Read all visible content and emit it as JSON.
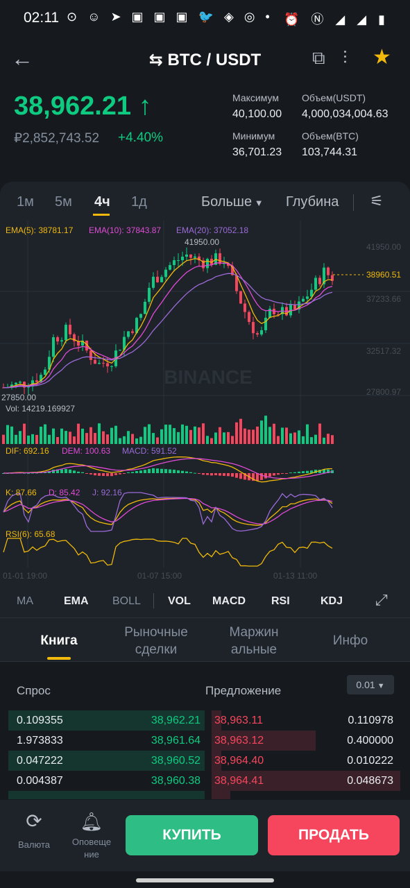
{
  "status_bar": {
    "time": "02:11",
    "icons_left": "⊙ ☺ ➤ ▣ ▣ ▣ 🐦 ◈ ◎ •",
    "icons_right": "⏰ Ⓝ ◢ ◢ ▮"
  },
  "header": {
    "pair": "BTC / USDT",
    "icons": [
      "back-arrow-icon",
      "swap-icon",
      "external-link-icon",
      "compare-icon",
      "star-icon"
    ]
  },
  "ticker": {
    "price": "38,962.21",
    "price_arrow": "↑",
    "rub_price": "₽2,852,743.52",
    "change": "+4.40%",
    "stats": [
      {
        "label": "Максимум",
        "value": "40,100.00"
      },
      {
        "label": "Объем(USDT)",
        "value": "4,000,034,004.63"
      },
      {
        "label": "Минимум",
        "value": "36,701.23"
      },
      {
        "label": "Объем(BTC)",
        "value": "103,744.31"
      }
    ]
  },
  "timeframes": [
    "1м",
    "5м",
    "4ч",
    "1д"
  ],
  "active_timeframe": "4ч",
  "more_label": "Больше",
  "depth_label": "Глубина",
  "chart_labels": {
    "ema5": "EMA(5): 38781.17",
    "ema10": "EMA(10): 37843.87",
    "ema20": "EMA(20): 37052.18",
    "high_marker": "41950.00",
    "low_marker": "27850.00",
    "last_price": "38960.51",
    "watermark": "BINANCE",
    "price_axis": [
      "41950.00",
      "37233.66",
      "32517.32",
      "27800.97"
    ],
    "vol": "Vol: 14219.169927",
    "dif": "DIF: 692.16",
    "dem": "DEM: 100.63",
    "macd": "MACD: 591.52",
    "k": "K: 87.66",
    "d": "D: 85.42",
    "j": "J: 92.16",
    "rsi": "RSI(6): 65.68",
    "time_axis": [
      "01-01 19:00",
      "01-07 15:00",
      "01-13 11:00"
    ]
  },
  "indicators": [
    {
      "label": "MA",
      "on": false
    },
    {
      "label": "EMA",
      "on": true
    },
    {
      "label": "BOLL",
      "on": false
    },
    {
      "label": "VOL",
      "on": true
    },
    {
      "label": "MACD",
      "on": true
    },
    {
      "label": "RSI",
      "on": true
    },
    {
      "label": "KDJ",
      "on": true
    }
  ],
  "tabs": [
    "Книга",
    "Рыночные\nсделки",
    "Маржин\nальные",
    "Инфо"
  ],
  "order_book": {
    "bid_header": "Спрос",
    "ask_header": "Предложение",
    "step": "0.01",
    "rows": [
      {
        "bid_qty": "0.109355",
        "bid_price": "38,962.21",
        "ask_price": "38,963.11",
        "ask_qty": "0.110978",
        "bid_fill": 1.0,
        "ask_fill": 0.05
      },
      {
        "bid_qty": "1.973833",
        "bid_price": "38,961.64",
        "ask_price": "38,963.12",
        "ask_qty": "0.400000",
        "bid_fill": 0.0,
        "ask_fill": 0.55
      },
      {
        "bid_qty": "0.047222",
        "bid_price": "38,960.52",
        "ask_price": "38,964.40",
        "ask_qty": "0.010222",
        "bid_fill": 1.0,
        "ask_fill": 0.05
      },
      {
        "bid_qty": "0.004387",
        "bid_price": "38,960.38",
        "ask_price": "38,964.41",
        "ask_qty": "0.048673",
        "bid_fill": 0.0,
        "ask_fill": 1.0
      }
    ]
  },
  "bottom_nav": [
    {
      "label": "Валюта",
      "icon": "currency-refresh-icon"
    },
    {
      "label": "Оповеще\nние",
      "icon": "bell-icon"
    }
  ],
  "buy_label": "КУПИТЬ",
  "sell_label": "ПРОДАТЬ",
  "colors": {
    "up": "#0ecb81",
    "down": "#f6465d",
    "accent": "#f0b90b",
    "ema5": "#f0b90b",
    "ema10": "#e04bd6",
    "ema20": "#9b6bd8"
  }
}
